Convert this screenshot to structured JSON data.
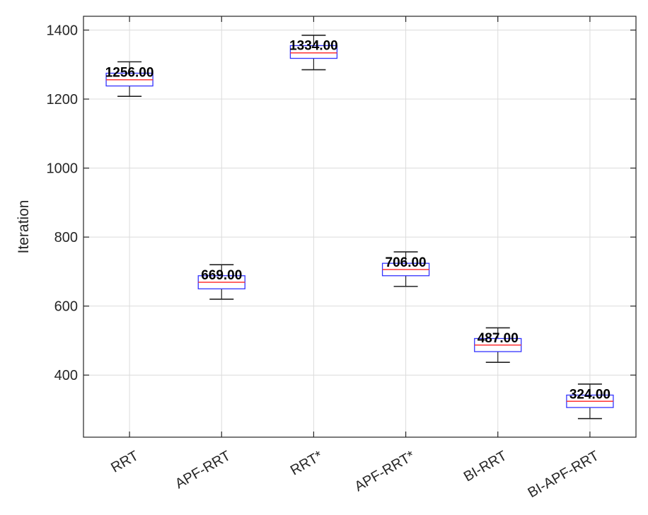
{
  "chart_data": {
    "type": "box",
    "title": "",
    "xlabel": "",
    "ylabel": "Iteration",
    "ylim": [
      220,
      1440
    ],
    "yticks": [
      400,
      600,
      800,
      1000,
      1200,
      1400
    ],
    "grid": true,
    "colors": {
      "box": "#3333ff",
      "median": "#ff3333",
      "whisker": "#222222",
      "grid": "#dcdcdc",
      "axis": "#262626"
    },
    "categories": [
      "RRT",
      "APF-RRT",
      "RRT*",
      "APF-RRT*",
      "BI-RRT",
      "BI-APF-RRT"
    ],
    "boxes": [
      {
        "median": 1256,
        "q1": 1238,
        "q3": 1275,
        "whisker_low": 1208,
        "whisker_high": 1308,
        "label": "1256.00"
      },
      {
        "median": 669,
        "q1": 650,
        "q3": 688,
        "whisker_low": 620,
        "whisker_high": 720,
        "label": "669.00"
      },
      {
        "median": 1334,
        "q1": 1318,
        "q3": 1355,
        "whisker_low": 1285,
        "whisker_high": 1385,
        "label": "1334.00"
      },
      {
        "median": 706,
        "q1": 688,
        "q3": 724,
        "whisker_low": 657,
        "whisker_high": 757,
        "label": "706.00"
      },
      {
        "median": 487,
        "q1": 468,
        "q3": 506,
        "whisker_low": 437,
        "whisker_high": 537,
        "label": "487.00"
      },
      {
        "median": 324,
        "q1": 306,
        "q3": 342,
        "whisker_low": 274,
        "whisker_high": 374,
        "label": "324.00"
      }
    ]
  }
}
